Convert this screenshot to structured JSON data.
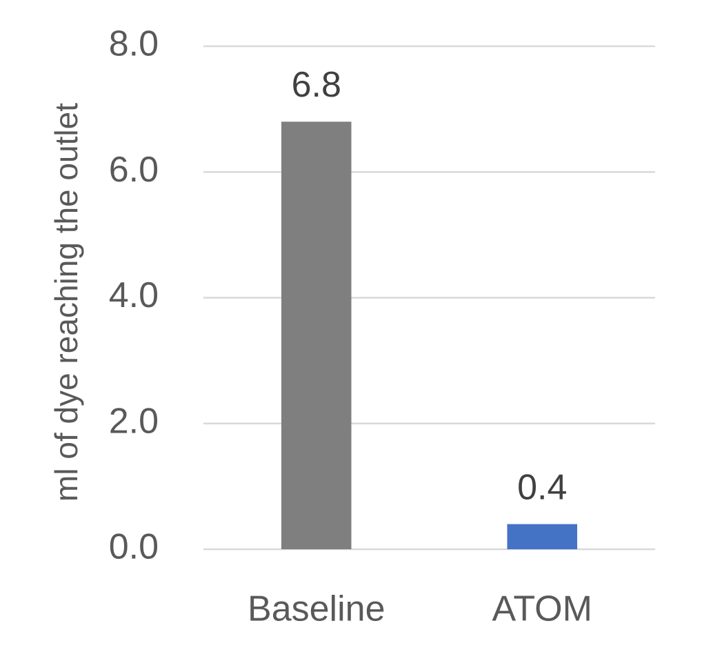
{
  "chart_data": {
    "type": "bar",
    "y_label": "ml of dye reaching the outlet",
    "categories": [
      "Baseline",
      "ATOM"
    ],
    "values": [
      6.8,
      0.4
    ],
    "colors": [
      "#7f7f7f",
      "#4472c4"
    ],
    "ylim": [
      0,
      8
    ],
    "yticks": [
      {
        "value": 0,
        "label": "0.0"
      },
      {
        "value": 2,
        "label": "2.0"
      },
      {
        "value": 4,
        "label": "4.0"
      },
      {
        "value": 6,
        "label": "6.0"
      },
      {
        "value": 8,
        "label": "8.0"
      }
    ],
    "grid": true
  }
}
